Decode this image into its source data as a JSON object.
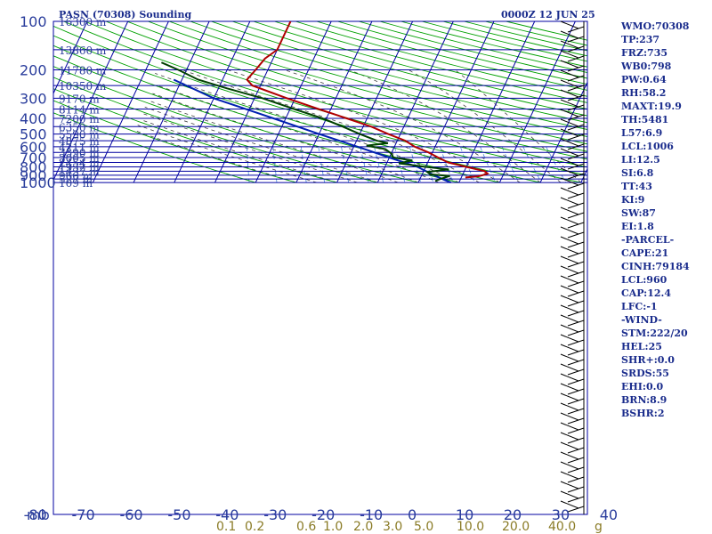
{
  "title_left": "PASN (70308) Sounding",
  "title_right": "0000Z 12 JUN 25",
  "indices": [
    "WMO:70308",
    "TP:237",
    "FRZ:735",
    "WB0:798",
    "PW:0.64",
    "RH:58.2",
    "MAXT:19.9",
    "TH:5481",
    "L57:6.9",
    "LCL:1006",
    "LI:12.5",
    "SI:6.8",
    "TT:43",
    "KI:9",
    "SW:87",
    "EI:1.8",
    "-PARCEL-",
    "CAPE:21",
    "CINH:79184",
    "LCL:960",
    "CAP:12.4",
    "LFC:-1",
    "-WIND-",
    "STM:222/20",
    "HEL:25",
    "SHR+:0.0",
    "SRDS:55",
    "EHI:0.0",
    "BRN:8.9",
    "BSHR:2"
  ],
  "colors": {
    "frame": "#0000a0",
    "isotherm": "#0000a0",
    "dry_adiabat": "#00a000",
    "moist_adiabat": "#404040",
    "mixing_ratio": "#4f8fd8",
    "temperature": "#b00000",
    "dewpoint": "#004000",
    "parcel": "#0020b0",
    "wind": "#000000",
    "text": "#2a3d9c",
    "mixing_label": "#8a7b26"
  },
  "chart_data": {
    "type": "skew-t",
    "pressure_axis_mb": [
      100,
      200,
      300,
      400,
      500,
      600,
      700,
      800,
      900,
      1000
    ],
    "pressure_axis_unit": "mb",
    "height_labels": [
      {
        "p": 100,
        "text": "16300 m"
      },
      {
        "p": 150,
        "text": "13860 m"
      },
      {
        "p": 200,
        "text": "11780 m"
      },
      {
        "p": 250,
        "text": "10350 m"
      },
      {
        "p": 300,
        "text": "9170 m"
      },
      {
        "p": 350,
        "text": "8114 m"
      },
      {
        "p": 400,
        "text": "7200 m"
      },
      {
        "p": 450,
        "text": "6350 m"
      },
      {
        "p": 500,
        "text": "5590 m"
      },
      {
        "p": 550,
        "text": "4875 m"
      },
      {
        "p": 600,
        "text": "4211 m"
      },
      {
        "p": 650,
        "text": "3590 m"
      },
      {
        "p": 700,
        "text": "3005 m"
      },
      {
        "p": 750,
        "text": "2454 m"
      },
      {
        "p": 800,
        "text": "1932 m"
      },
      {
        "p": 850,
        "text": "1437 m"
      },
      {
        "p": 900,
        "text": "966 m"
      },
      {
        "p": 950,
        "text": "527 m"
      },
      {
        "p": 1000,
        "text": "109 m"
      }
    ],
    "temperature_axis_c": [
      -80,
      -70,
      -60,
      -50,
      -40,
      -30,
      -20,
      -10,
      0,
      10,
      20,
      30,
      40
    ],
    "mixing_ratio_labels_gkg": [
      "0.1",
      "0.2",
      "0.6",
      "1.0",
      "2.0",
      "3.0",
      "5.0",
      "10.0",
      "20.0",
      "40.0"
    ],
    "mixing_ratio_unit": "g",
    "temperature_profile": [
      {
        "p": 100,
        "t": -50
      },
      {
        "p": 150,
        "t": -50
      },
      {
        "p": 170,
        "t": -52
      },
      {
        "p": 200,
        "t": -53
      },
      {
        "p": 230,
        "t": -54
      },
      {
        "p": 250,
        "t": -52
      },
      {
        "p": 300,
        "t": -42
      },
      {
        "p": 350,
        "t": -33
      },
      {
        "p": 400,
        "t": -25
      },
      {
        "p": 450,
        "t": -18
      },
      {
        "p": 500,
        "t": -13
      },
      {
        "p": 550,
        "t": -8
      },
      {
        "p": 600,
        "t": -5
      },
      {
        "p": 650,
        "t": -1
      },
      {
        "p": 700,
        "t": 2
      },
      {
        "p": 750,
        "t": 5
      },
      {
        "p": 800,
        "t": 10
      },
      {
        "p": 850,
        "t": 15
      },
      {
        "p": 880,
        "t": 16
      },
      {
        "p": 900,
        "t": 15
      },
      {
        "p": 915,
        "t": 14
      },
      {
        "p": 930,
        "t": 11
      }
    ],
    "dewpoint_profile": [
      {
        "p": 180,
        "t": -77
      },
      {
        "p": 200,
        "t": -72
      },
      {
        "p": 230,
        "t": -66
      },
      {
        "p": 260,
        "t": -58
      },
      {
        "p": 300,
        "t": -48
      },
      {
        "p": 350,
        "t": -39
      },
      {
        "p": 400,
        "t": -31
      },
      {
        "p": 450,
        "t": -25
      },
      {
        "p": 500,
        "t": -20
      },
      {
        "p": 550,
        "t": -15
      },
      {
        "p": 570,
        "t": -12
      },
      {
        "p": 590,
        "t": -17
      },
      {
        "p": 620,
        "t": -12
      },
      {
        "p": 660,
        "t": -10
      },
      {
        "p": 700,
        "t": -9
      },
      {
        "p": 730,
        "t": -4
      },
      {
        "p": 760,
        "t": -7
      },
      {
        "p": 800,
        "t": 0
      },
      {
        "p": 830,
        "t": 6
      },
      {
        "p": 860,
        "t": 1
      },
      {
        "p": 890,
        "t": 2
      },
      {
        "p": 910,
        "t": 7
      },
      {
        "p": 950,
        "t": 5
      },
      {
        "p": 980,
        "t": 4
      }
    ],
    "parcel_profile": [
      {
        "p": 230,
        "t": -72
      },
      {
        "p": 300,
        "t": -60
      },
      {
        "p": 400,
        "t": -43
      },
      {
        "p": 500,
        "t": -30
      },
      {
        "p": 600,
        "t": -19
      },
      {
        "p": 700,
        "t": -10
      },
      {
        "p": 800,
        "t": -2
      },
      {
        "p": 900,
        "t": 3
      },
      {
        "p": 960,
        "t": 6
      },
      {
        "p": 1000,
        "t": 8
      }
    ]
  }
}
